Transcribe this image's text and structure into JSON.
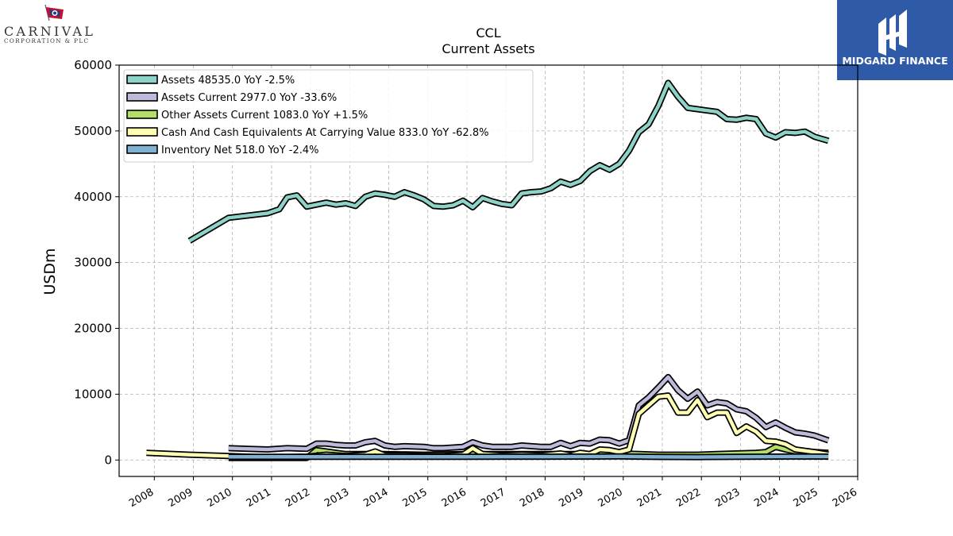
{
  "logos": {
    "left": {
      "name": "CARNIVAL",
      "sub": "CORPORATION & PLC"
    },
    "right": {
      "name": "MIDGARD FINANCE",
      "color": "#2f5aa8"
    }
  },
  "chart_data": {
    "type": "line",
    "title": "CCL",
    "subtitle": "Current  Assets",
    "ylabel": "USDm",
    "xlabel": "",
    "ylim": [
      -2500,
      60000
    ],
    "xlim": [
      2007.1,
      2026.0
    ],
    "yticks": [
      0,
      10000,
      20000,
      30000,
      40000,
      50000,
      60000
    ],
    "xticks": [
      "2008",
      "2009",
      "2010",
      "2011",
      "2012",
      "2013",
      "2014",
      "2015",
      "2016",
      "2017",
      "2018",
      "2019",
      "2020",
      "2021",
      "2022",
      "2023",
      "2024",
      "2025",
      "2026"
    ],
    "grid": true,
    "legend_position": "top-left",
    "series": [
      {
        "name": "Assets",
        "legend": "Assets  48535.0 YoY -2.5%",
        "color": "#8dd3c7",
        "points": [
          [
            2008.9,
            33300
          ],
          [
            2009.9,
            36800
          ],
          [
            2010.9,
            37500
          ],
          [
            2011.2,
            38100
          ],
          [
            2011.4,
            39900
          ],
          [
            2011.65,
            40200
          ],
          [
            2011.9,
            38500
          ],
          [
            2012.15,
            38800
          ],
          [
            2012.4,
            39100
          ],
          [
            2012.65,
            38800
          ],
          [
            2012.9,
            39000
          ],
          [
            2013.15,
            38600
          ],
          [
            2013.4,
            40000
          ],
          [
            2013.65,
            40500
          ],
          [
            2013.9,
            40300
          ],
          [
            2014.15,
            40000
          ],
          [
            2014.4,
            40700
          ],
          [
            2014.65,
            40200
          ],
          [
            2014.9,
            39600
          ],
          [
            2015.15,
            38600
          ],
          [
            2015.4,
            38500
          ],
          [
            2015.65,
            38700
          ],
          [
            2015.9,
            39400
          ],
          [
            2016.15,
            38400
          ],
          [
            2016.4,
            39800
          ],
          [
            2016.65,
            39300
          ],
          [
            2016.9,
            38900
          ],
          [
            2017.15,
            38700
          ],
          [
            2017.4,
            40500
          ],
          [
            2017.65,
            40700
          ],
          [
            2017.9,
            40800
          ],
          [
            2018.15,
            41300
          ],
          [
            2018.4,
            42300
          ],
          [
            2018.65,
            41800
          ],
          [
            2018.9,
            42400
          ],
          [
            2019.15,
            43900
          ],
          [
            2019.4,
            44800
          ],
          [
            2019.65,
            44100
          ],
          [
            2019.9,
            45000
          ],
          [
            2020.15,
            47000
          ],
          [
            2020.4,
            49800
          ],
          [
            2020.65,
            51000
          ],
          [
            2020.9,
            53800
          ],
          [
            2021.15,
            57300
          ],
          [
            2021.4,
            55200
          ],
          [
            2021.65,
            53500
          ],
          [
            2021.9,
            53300
          ],
          [
            2022.15,
            53100
          ],
          [
            2022.4,
            52900
          ],
          [
            2022.65,
            51800
          ],
          [
            2022.9,
            51700
          ],
          [
            2023.15,
            52000
          ],
          [
            2023.4,
            51800
          ],
          [
            2023.65,
            49600
          ],
          [
            2023.9,
            49000
          ],
          [
            2024.15,
            49800
          ],
          [
            2024.4,
            49700
          ],
          [
            2024.65,
            49900
          ],
          [
            2024.9,
            49100
          ],
          [
            2025.25,
            48500
          ]
        ]
      },
      {
        "name": "Assets Current",
        "legend": "Assets Current  2977.0 YoY -33.6%",
        "color": "#bebada",
        "points": [
          [
            2009.9,
            1800
          ],
          [
            2010.4,
            1700
          ],
          [
            2010.9,
            1600
          ],
          [
            2011.4,
            1800
          ],
          [
            2011.9,
            1700
          ],
          [
            2012.15,
            2500
          ],
          [
            2012.4,
            2500
          ],
          [
            2012.65,
            2300
          ],
          [
            2012.9,
            2200
          ],
          [
            2013.15,
            2200
          ],
          [
            2013.4,
            2700
          ],
          [
            2013.65,
            2900
          ],
          [
            2013.9,
            2200
          ],
          [
            2014.15,
            2000
          ],
          [
            2014.4,
            2100
          ],
          [
            2014.9,
            2000
          ],
          [
            2015.15,
            1800
          ],
          [
            2015.4,
            1800
          ],
          [
            2015.9,
            2000
          ],
          [
            2016.15,
            2700
          ],
          [
            2016.4,
            2200
          ],
          [
            2016.65,
            2000
          ],
          [
            2016.9,
            2000
          ],
          [
            2017.15,
            2000
          ],
          [
            2017.4,
            2200
          ],
          [
            2017.9,
            2000
          ],
          [
            2018.15,
            2000
          ],
          [
            2018.4,
            2600
          ],
          [
            2018.65,
            2100
          ],
          [
            2018.9,
            2600
          ],
          [
            2019.15,
            2500
          ],
          [
            2019.4,
            3100
          ],
          [
            2019.65,
            3000
          ],
          [
            2019.9,
            2500
          ],
          [
            2020.15,
            3000
          ],
          [
            2020.4,
            8300
          ],
          [
            2020.65,
            9500
          ],
          [
            2020.9,
            11000
          ],
          [
            2021.15,
            12600
          ],
          [
            2021.4,
            10600
          ],
          [
            2021.65,
            9300
          ],
          [
            2021.9,
            10400
          ],
          [
            2022.15,
            8300
          ],
          [
            2022.4,
            8800
          ],
          [
            2022.65,
            8600
          ],
          [
            2022.9,
            7700
          ],
          [
            2023.15,
            7400
          ],
          [
            2023.4,
            6400
          ],
          [
            2023.65,
            5000
          ],
          [
            2023.9,
            5700
          ],
          [
            2024.15,
            4900
          ],
          [
            2024.4,
            4200
          ],
          [
            2024.65,
            4000
          ],
          [
            2024.9,
            3700
          ],
          [
            2025.25,
            2977
          ]
        ]
      },
      {
        "name": "Other Assets Current",
        "legend": "Other Assets Current  1083.0 YoY +1.5%",
        "color": "#b3de69",
        "points": [
          [
            2009.9,
            300
          ],
          [
            2010.9,
            300
          ],
          [
            2011.9,
            300
          ],
          [
            2012.15,
            1500
          ],
          [
            2012.4,
            1300
          ],
          [
            2012.65,
            1100
          ],
          [
            2012.9,
            900
          ],
          [
            2013.9,
            900
          ],
          [
            2014.9,
            800
          ],
          [
            2015.9,
            900
          ],
          [
            2016.9,
            900
          ],
          [
            2017.9,
            900
          ],
          [
            2018.9,
            900
          ],
          [
            2019.9,
            1000
          ],
          [
            2020.4,
            900
          ],
          [
            2020.9,
            800
          ],
          [
            2021.9,
            800
          ],
          [
            2022.4,
            900
          ],
          [
            2022.9,
            1000
          ],
          [
            2023.4,
            1100
          ],
          [
            2023.65,
            1200
          ],
          [
            2023.9,
            2000
          ],
          [
            2024.15,
            1600
          ],
          [
            2024.4,
            1300
          ],
          [
            2024.9,
            1200
          ],
          [
            2025.25,
            1083
          ]
        ]
      },
      {
        "name": "Cash And Cash Equivalents At Carrying Value",
        "legend": "Cash And Cash Equivalents At Carrying Value  833.0 YoY -62.8%",
        "color": "#ffffb3",
        "points": [
          [
            2007.8,
            1100
          ],
          [
            2008.9,
            800
          ],
          [
            2009.9,
            600
          ],
          [
            2010.9,
            400
          ],
          [
            2011.9,
            500
          ],
          [
            2012.4,
            800
          ],
          [
            2012.9,
            600
          ],
          [
            2013.4,
            800
          ],
          [
            2013.65,
            1300
          ],
          [
            2013.9,
            700
          ],
          [
            2014.4,
            700
          ],
          [
            2014.9,
            600
          ],
          [
            2015.4,
            600
          ],
          [
            2015.9,
            800
          ],
          [
            2016.15,
            1800
          ],
          [
            2016.4,
            900
          ],
          [
            2016.9,
            700
          ],
          [
            2017.4,
            800
          ],
          [
            2017.9,
            700
          ],
          [
            2018.4,
            1000
          ],
          [
            2018.65,
            700
          ],
          [
            2018.9,
            1100
          ],
          [
            2019.15,
            900
          ],
          [
            2019.4,
            1600
          ],
          [
            2019.65,
            1500
          ],
          [
            2019.9,
            1200
          ],
          [
            2020.15,
            1600
          ],
          [
            2020.4,
            7000
          ],
          [
            2020.65,
            8300
          ],
          [
            2020.9,
            9600
          ],
          [
            2021.15,
            9800
          ],
          [
            2021.4,
            7200
          ],
          [
            2021.65,
            7200
          ],
          [
            2021.9,
            9100
          ],
          [
            2022.15,
            6500
          ],
          [
            2022.4,
            7200
          ],
          [
            2022.65,
            7200
          ],
          [
            2022.9,
            4100
          ],
          [
            2023.15,
            5100
          ],
          [
            2023.4,
            4300
          ],
          [
            2023.65,
            2900
          ],
          [
            2023.9,
            2800
          ],
          [
            2024.15,
            2400
          ],
          [
            2024.4,
            1600
          ],
          [
            2024.9,
            1200
          ],
          [
            2025.25,
            833
          ]
        ]
      },
      {
        "name": "Inventory Net",
        "legend": "Inventory Net  518.0 YoY -2.4%",
        "color": "#80b1d3",
        "points": [
          [
            2009.9,
            480
          ],
          [
            2011.9,
            480
          ],
          [
            2013.9,
            480
          ],
          [
            2015.9,
            490
          ],
          [
            2017.9,
            500
          ],
          [
            2019.9,
            540
          ],
          [
            2020.9,
            470
          ],
          [
            2021.9,
            450
          ],
          [
            2022.9,
            480
          ],
          [
            2023.9,
            520
          ],
          [
            2024.4,
            530
          ],
          [
            2025.25,
            518
          ]
        ]
      }
    ]
  }
}
